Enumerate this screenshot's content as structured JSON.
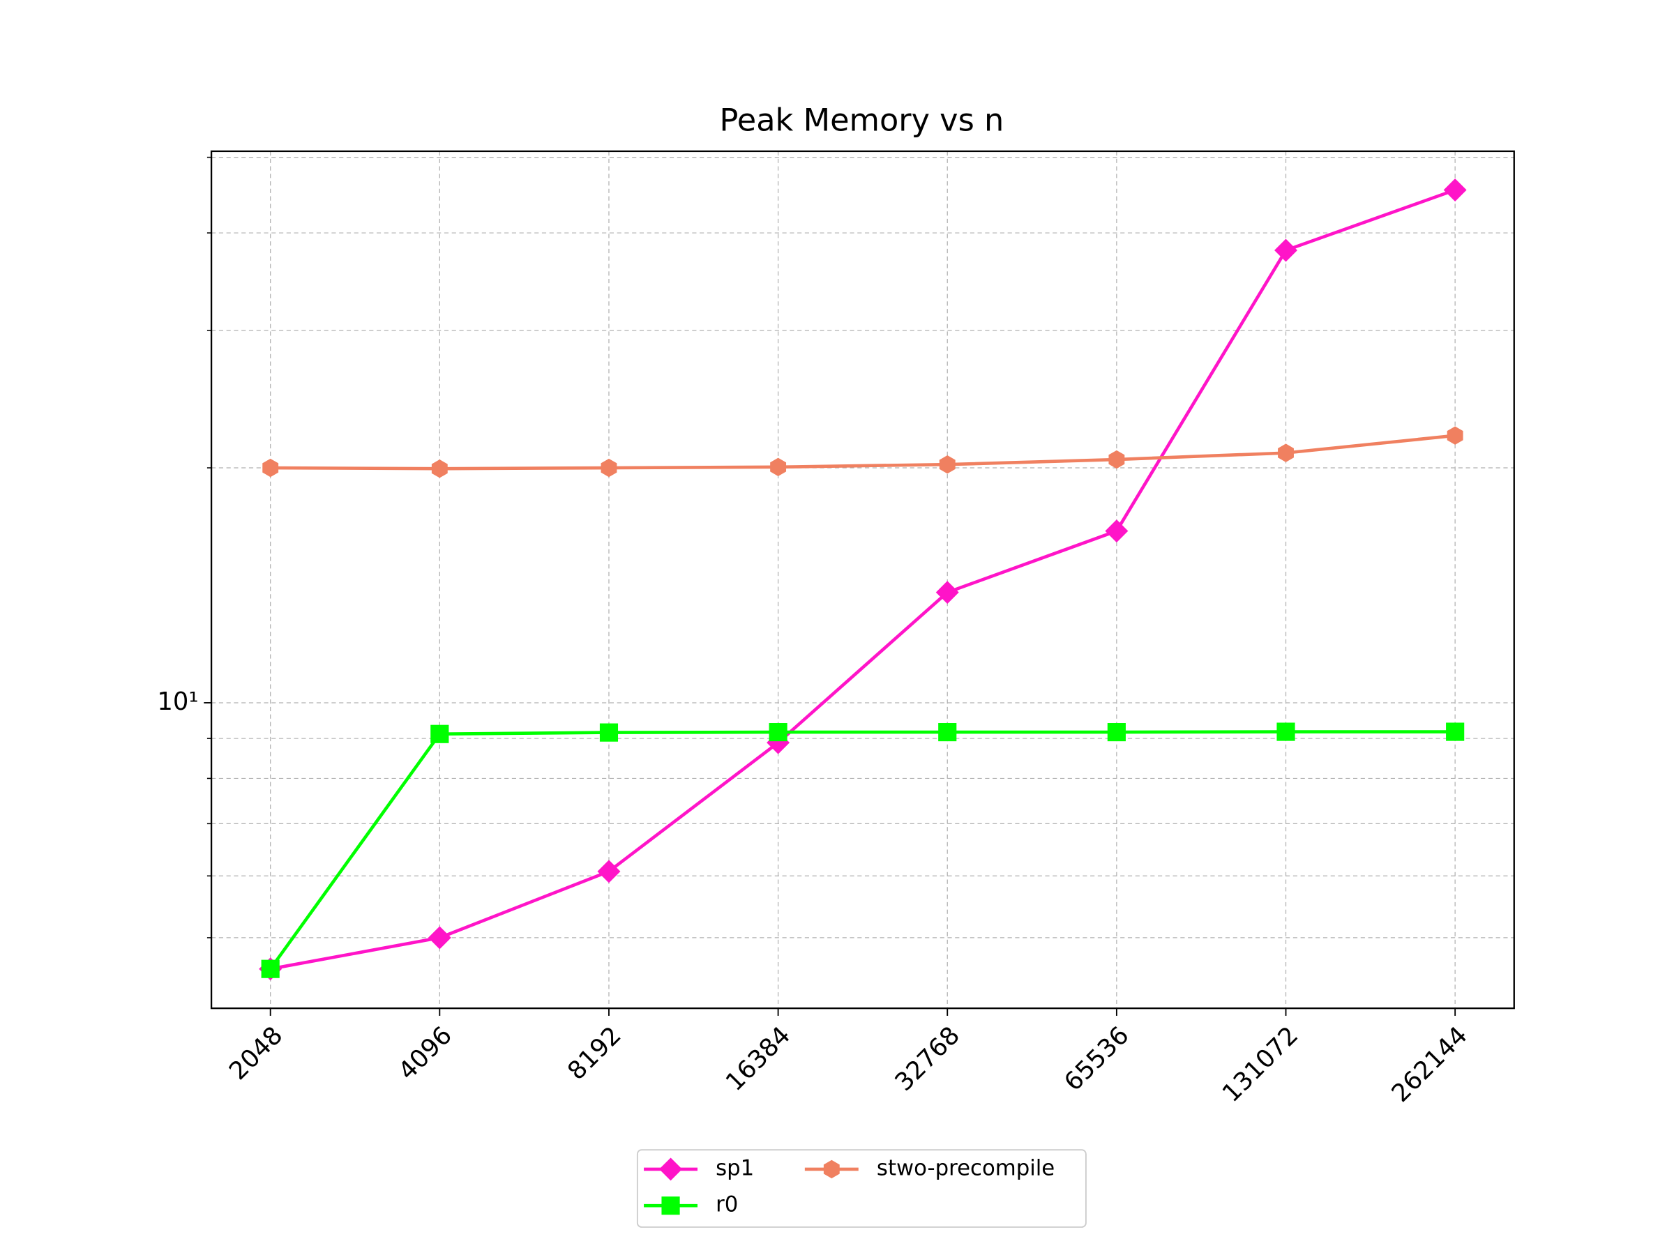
{
  "chart_data": {
    "type": "line",
    "title": "Peak Memory vs n",
    "categories": [
      "2048",
      "4096",
      "8192",
      "16384",
      "32768",
      "65536",
      "131072",
      "262144"
    ],
    "series": [
      {
        "name": "sp1",
        "color": "#ff14c8",
        "marker": "diamond",
        "values": [
          4.56,
          5.0,
          6.08,
          8.89,
          13.85,
          16.6,
          38.0,
          45.4
        ]
      },
      {
        "name": "r0",
        "color": "#00ff00",
        "marker": "square",
        "values": [
          4.56,
          9.12,
          9.16,
          9.17,
          9.17,
          9.17,
          9.18,
          9.18
        ]
      },
      {
        "name": "stwo-precompile",
        "color": "#f08060",
        "marker": "hexagon",
        "values": [
          20.0,
          19.95,
          20.0,
          20.05,
          20.2,
          20.5,
          20.9,
          22.0
        ]
      }
    ],
    "ylim": [
      4.06,
      50.9
    ],
    "log_y": true,
    "yticks": [
      {
        "value": 10,
        "label": "10¹"
      }
    ],
    "yticks_minor": [
      5,
      6,
      7,
      8,
      9,
      20,
      30,
      40,
      50
    ],
    "grid": true,
    "legend": "lower center outside"
  }
}
